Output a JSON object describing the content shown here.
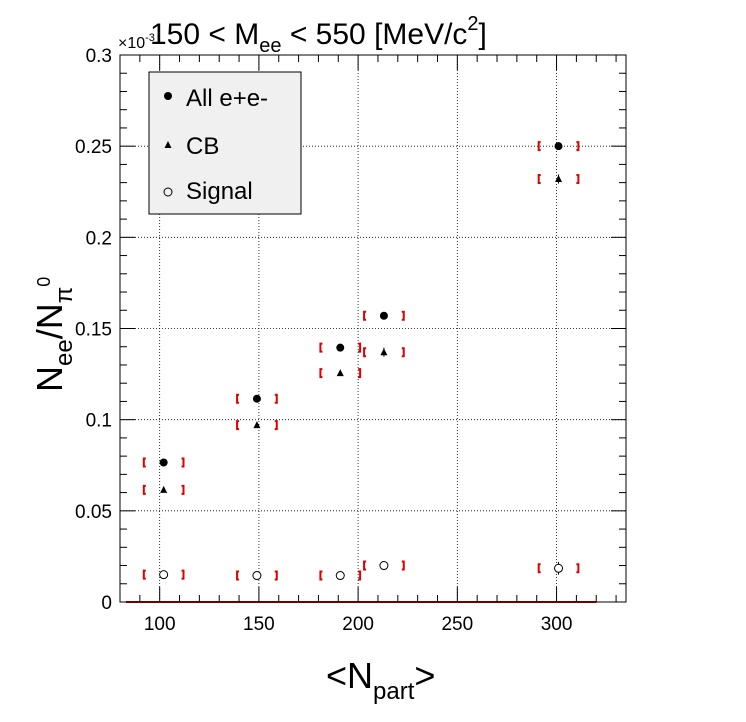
{
  "chart_data": {
    "type": "scatter",
    "title": "150 < M_ee < 550 [MeV/c^2]",
    "title_parts": {
      "pre": "150 < M",
      "sub": "ee",
      "mid": " < 550 [MeV/c",
      "sup": "2",
      "post": "]"
    },
    "exponent_label": "×10",
    "exponent_power": "-3",
    "xlabel": "<N_part>",
    "xlabel_parts": {
      "pre": "<N",
      "sub": "part",
      "post": ">"
    },
    "ylabel": "N_ee/N_π^0",
    "ylabel_parts": {
      "n1": "N",
      "sub1": "ee",
      "slash": "/N",
      "sub2": "π",
      "sup2": "0"
    },
    "xlim": [
      80,
      335
    ],
    "ylim": [
      0,
      0.3
    ],
    "y_scale_note": "×10^-3",
    "x_ticks": [
      100,
      150,
      200,
      250,
      300
    ],
    "x_tick_labels": [
      "100",
      "150",
      "200",
      "250",
      "300"
    ],
    "y_ticks": [
      0,
      0.05,
      0.1,
      0.15,
      0.2,
      0.25,
      0.3
    ],
    "y_tick_labels": [
      "0",
      "0.05",
      "0.1",
      "0.15",
      "0.2",
      "0.25",
      "0.3"
    ],
    "grid": true,
    "legend_position": "top-left",
    "colors": {
      "systematic": "#e00000",
      "marker": "#000000",
      "legend_bg": "#f0f0f0"
    },
    "series": [
      {
        "name": "All e+e-",
        "marker": "filled-circle",
        "x": [
          102,
          149,
          191,
          213,
          301
        ],
        "y": [
          0.0765,
          0.1115,
          0.1395,
          0.157,
          0.25
        ],
        "yerr": [
          0.0008,
          0.0008,
          0.0008,
          0.0008,
          0.001
        ],
        "sys_halfwidth_x": [
          10,
          10,
          10,
          10,
          10
        ]
      },
      {
        "name": "CB",
        "marker": "filled-triangle",
        "x": [
          102,
          149,
          191,
          213,
          301
        ],
        "y": [
          0.0615,
          0.097,
          0.1255,
          0.137,
          0.232
        ],
        "yerr": [
          0.0008,
          0.0008,
          0.0008,
          0.0025,
          0.0025
        ],
        "sys_halfwidth_x": [
          10,
          10,
          10,
          10,
          10
        ]
      },
      {
        "name": "Signal",
        "marker": "open-circle",
        "x": [
          102,
          149,
          191,
          213,
          301
        ],
        "y": [
          0.015,
          0.0145,
          0.0145,
          0.02,
          0.0185
        ],
        "yerr": [
          0.0015,
          0.0015,
          0.0015,
          0.0025,
          0.0035
        ],
        "sys_halfwidth_x": [
          10,
          10,
          10,
          10,
          10
        ]
      }
    ],
    "zero_band": {
      "x": [
        83,
        320
      ],
      "y": 0,
      "color": "#e00000"
    }
  }
}
